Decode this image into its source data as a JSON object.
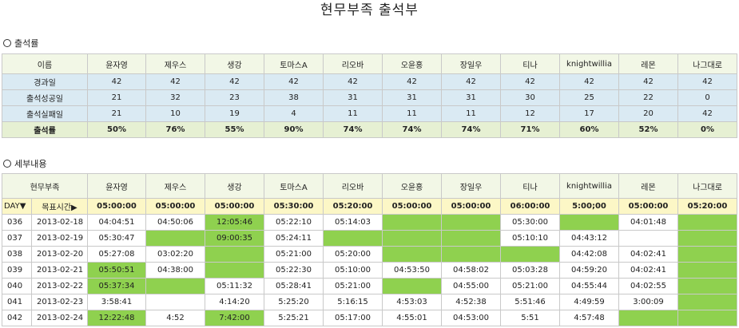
{
  "title": "현무부족 출석부",
  "section1_label": "출석률",
  "section2_label": "세부내용",
  "members": [
    "윤자영",
    "제우스",
    "생강",
    "토마스A",
    "리오바",
    "오윤홍",
    "장일우",
    "티나",
    "knightwillia",
    "레몬",
    "나그대로"
  ],
  "attendance": {
    "name_label": "이름",
    "rows": [
      {
        "label": "경과일",
        "values": [
          "42",
          "42",
          "42",
          "42",
          "42",
          "42",
          "42",
          "42",
          "42",
          "42",
          "42"
        ]
      },
      {
        "label": "출석성공일",
        "values": [
          "21",
          "32",
          "23",
          "38",
          "31",
          "31",
          "31",
          "30",
          "25",
          "22",
          "0"
        ]
      },
      {
        "label": "출석실패일",
        "values": [
          "21",
          "10",
          "19",
          "4",
          "11",
          "11",
          "11",
          "12",
          "17",
          "20",
          "42"
        ]
      },
      {
        "label": "출석률",
        "values": [
          "50%",
          "76%",
          "55%",
          "90%",
          "74%",
          "74%",
          "74%",
          "71%",
          "60%",
          "52%",
          "0%"
        ]
      }
    ]
  },
  "detail": {
    "tribe_label": "현무부족",
    "day_label": "DAY▼",
    "goal_label": "목표시간▶",
    "goals": [
      "05:00:00",
      "05:00:00",
      "05:00:00",
      "05:30:00",
      "05:20:00",
      "05:00:00",
      "05:00:00",
      "06:00:00",
      "5:00;00",
      "05:00:00",
      "05:20:00"
    ],
    "rows": [
      {
        "day": "036",
        "date": "2013-02-18",
        "values": [
          "04:04:51",
          "04:50:06",
          "12:05:46",
          "05:22:10",
          "05:14:03",
          "",
          "",
          "05:30:00",
          "",
          "04:01:48",
          ""
        ],
        "green": [
          2,
          5,
          6,
          8,
          10
        ]
      },
      {
        "day": "037",
        "date": "2013-02-19",
        "values": [
          "05:30:47",
          "",
          "09:00:35",
          "05:24:11",
          "",
          "",
          "",
          "05:10:10",
          "04:43:12",
          "",
          ""
        ],
        "green": [
          1,
          2,
          4,
          5,
          6,
          10
        ]
      },
      {
        "day": "038",
        "date": "2013-02-20",
        "values": [
          "05:27:08",
          "03:02:20",
          "",
          "05:21:00",
          "05:20:00",
          "",
          "",
          "",
          "04:42:08",
          "04:02:41",
          ""
        ],
        "green": [
          2,
          5,
          6,
          7,
          10
        ]
      },
      {
        "day": "039",
        "date": "2013-02-21",
        "values": [
          "05:50:51",
          "04:38:00",
          "",
          "05:22:30",
          "05:10:00",
          "04:53:50",
          "04:58:02",
          "05:03:28",
          "04:59:20",
          "04:02:41",
          ""
        ],
        "green": [
          0,
          2,
          10
        ]
      },
      {
        "day": "040",
        "date": "2013-02-22",
        "values": [
          "05:37:34",
          "",
          "05:11:32",
          "05:28:41",
          "05:21:00",
          "",
          "04:55:00",
          "05:21:00",
          "04:55:44",
          "04:02:55",
          ""
        ],
        "green": [
          0,
          1,
          5,
          10
        ]
      },
      {
        "day": "041",
        "date": "2013-02-23",
        "values": [
          "3:58:41",
          "",
          "4:14:20",
          "5:25:20",
          "5:16:15",
          "4:53:03",
          "4:52:38",
          "5:51:46",
          "4:49:59",
          "3:00:09",
          ""
        ],
        "green": [
          10
        ]
      },
      {
        "day": "042",
        "date": "2013-02-24",
        "values": [
          "12:22:48",
          "4:52",
          "7:42:00",
          "5:25:21",
          "05:17:00",
          "4:55:01",
          "04:53:00",
          "5:51",
          "4:57:48",
          "",
          ""
        ],
        "green": [
          0,
          2,
          9,
          10
        ]
      }
    ]
  }
}
